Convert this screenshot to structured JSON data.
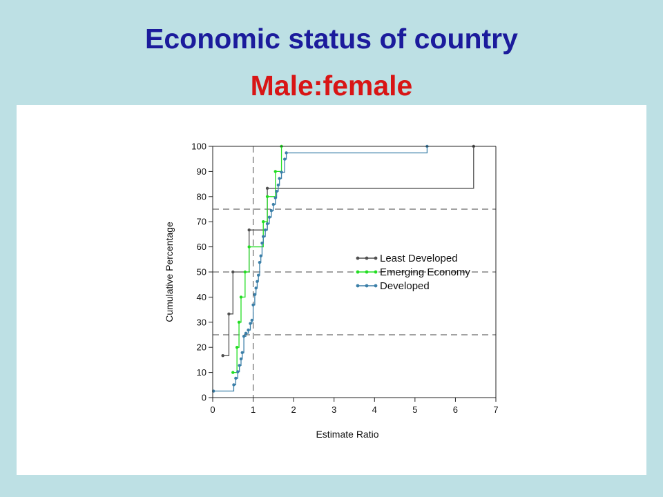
{
  "slide": {
    "title": "Economic status of country",
    "subtitle": "Male:female"
  },
  "chart_data": {
    "type": "line",
    "subtype": "step",
    "xlabel": "Estimate Ratio",
    "ylabel": "Cumulative Percentage",
    "xlim": [
      0,
      7
    ],
    "ylim": [
      0,
      100
    ],
    "x_ticks": [
      "0",
      "1",
      "2",
      "3",
      "4",
      "5",
      "6",
      "7"
    ],
    "y_ticks": [
      "0",
      "10",
      "20",
      "30",
      "40",
      "50",
      "60",
      "70",
      "80",
      "90",
      "100"
    ],
    "reference_lines": {
      "horizontal": [
        25,
        50,
        75
      ],
      "vertical": [
        1
      ]
    },
    "legend_position": "right-center",
    "grid": false,
    "series": [
      {
        "name": "Least Developed",
        "color": "#505050",
        "x": [
          0.25,
          0.4,
          0.5,
          0.9,
          1.35,
          6.45
        ],
        "y": [
          16.7,
          33.3,
          50,
          66.7,
          83.3,
          100
        ]
      },
      {
        "name": "Emerging Economy",
        "color": "#22dd22",
        "x": [
          0.5,
          0.6,
          0.65,
          0.7,
          0.8,
          0.9,
          1.25,
          1.35,
          1.55,
          1.7
        ],
        "y": [
          10,
          20,
          30,
          40,
          50,
          60,
          70,
          80,
          90,
          100
        ]
      },
      {
        "name": "Developed",
        "color": "#3b7fa8",
        "x": [
          0.02,
          0.52,
          0.57,
          0.62,
          0.66,
          0.7,
          0.73,
          0.77,
          0.82,
          0.88,
          0.93,
          0.97,
          1.0,
          1.04,
          1.07,
          1.1,
          1.13,
          1.16,
          1.19,
          1.22,
          1.25,
          1.3,
          1.35,
          1.4,
          1.45,
          1.5,
          1.55,
          1.58,
          1.62,
          1.65,
          1.7,
          1.78,
          1.82,
          5.3
        ],
        "y": [
          2.6,
          5.1,
          7.7,
          10.3,
          12.8,
          15.4,
          17.9,
          24.4,
          25.6,
          26.9,
          29.5,
          30.8,
          36.9,
          41.0,
          43.6,
          46.2,
          48.7,
          53.8,
          56.4,
          61.5,
          64.1,
          66.7,
          69.2,
          71.8,
          74.4,
          76.9,
          79.5,
          82.1,
          84.6,
          87.2,
          89.7,
          94.9,
          97.4,
          100
        ]
      }
    ]
  }
}
